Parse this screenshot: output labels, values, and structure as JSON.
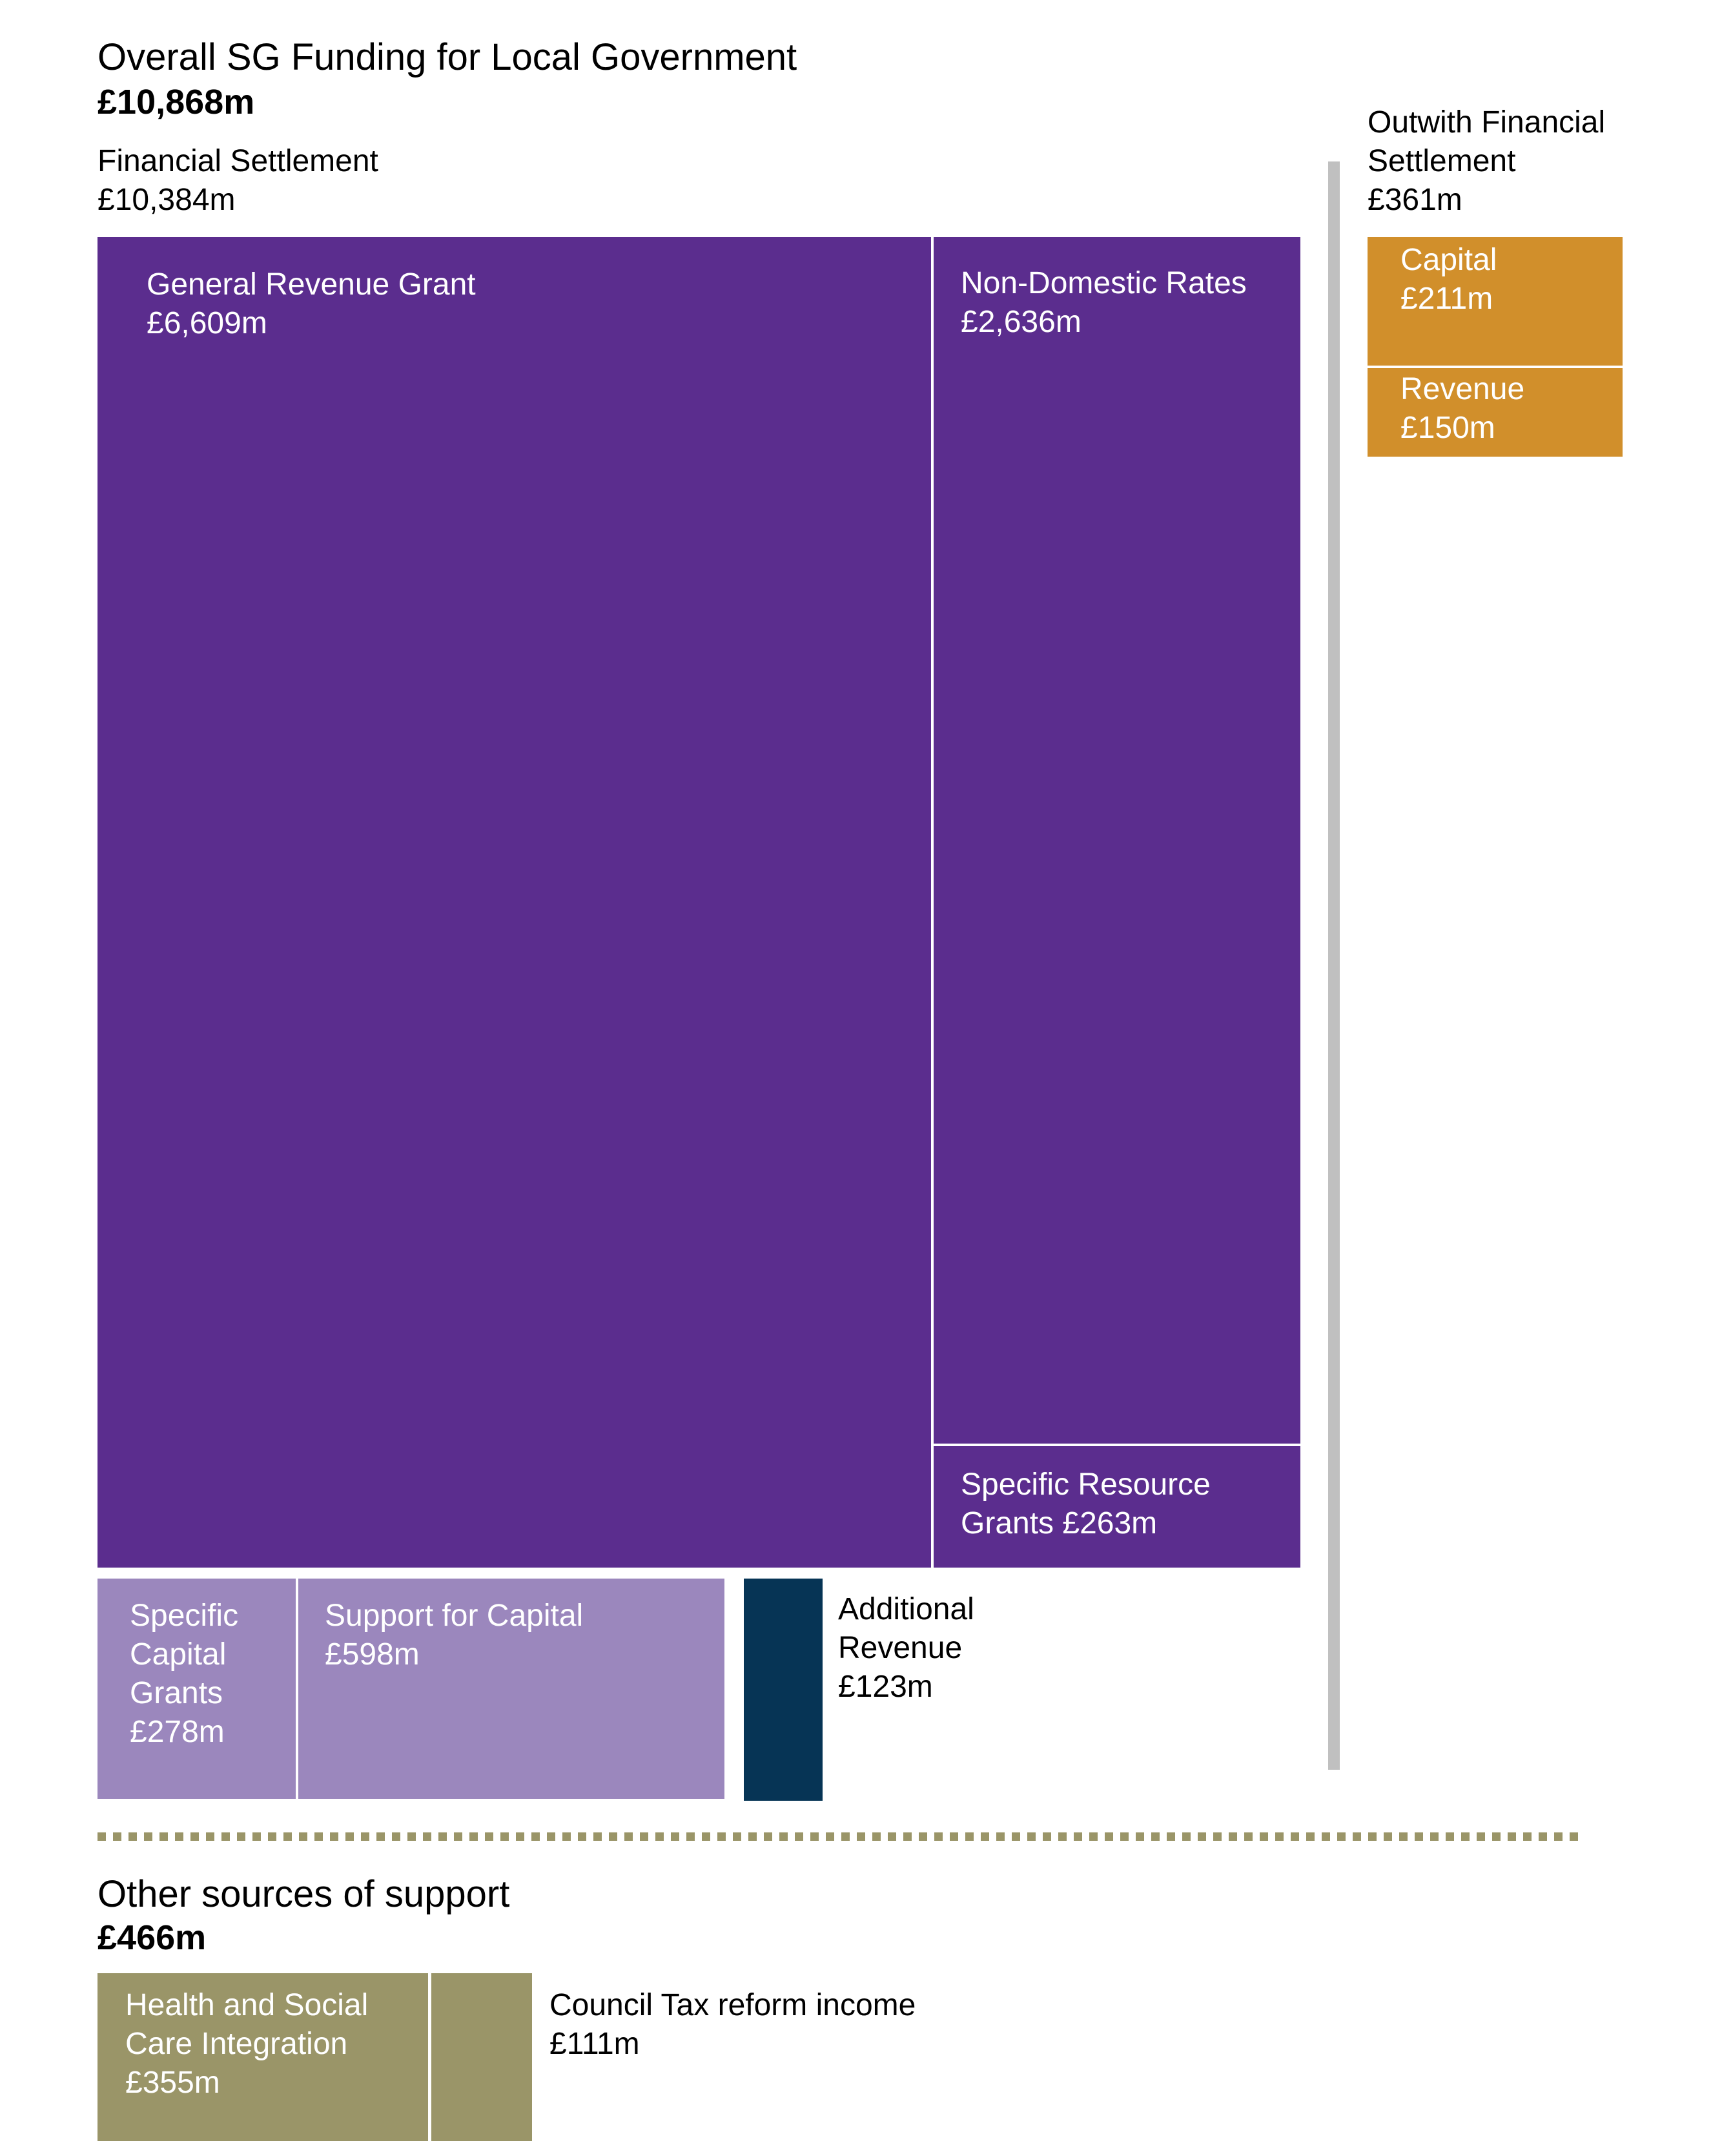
{
  "header": {
    "title": "Overall SG Funding for Local Government",
    "total": "£10,868m"
  },
  "settlement": {
    "label": "Financial Settlement",
    "total": "£10,384m"
  },
  "outwith": {
    "label_line1": "Outwith Financial",
    "label_line2": "Settlement",
    "total": "£361m"
  },
  "other": {
    "label": "Other sources of support",
    "total": "£466m"
  },
  "colors": {
    "settlement_dark": "#5b2d8e",
    "settlement_light": "#9b87bd",
    "additional_revenue": "#063455",
    "outwith": "#d18f2b",
    "other": "#9a9568",
    "divider_grey": "#c0c0c0",
    "dotted_line": "#9a9568"
  },
  "chart_data": {
    "type": "treemap",
    "title": "Overall SG Funding for Local Government",
    "units": "£m",
    "groups": [
      {
        "name": "Financial Settlement",
        "total": 10384,
        "items": [
          {
            "name": "General Revenue Grant",
            "value": 6609,
            "label_lines": [
              "General Revenue Grant",
              "£6,609m"
            ]
          },
          {
            "name": "Non-Domestic Rates",
            "value": 2636,
            "label_lines": [
              "Non-Domestic Rates",
              "£2,636m"
            ]
          },
          {
            "name": "Specific Resource Grants",
            "value": 263,
            "label_lines": [
              "Specific Resource",
              "Grants £263m"
            ]
          },
          {
            "name": "Specific Capital Grants",
            "value": 278,
            "label_lines": [
              "Specific",
              "Capital",
              "Grants",
              "£278m"
            ]
          },
          {
            "name": "Support for Capital",
            "value": 598,
            "label_lines": [
              "Support for Capital",
              "£598m"
            ]
          },
          {
            "name": "Additional Revenue",
            "value": 123,
            "label_lines": [
              "Additional",
              "Revenue",
              "£123m"
            ]
          }
        ]
      },
      {
        "name": "Outwith Financial Settlement",
        "total": 361,
        "items": [
          {
            "name": "Capital",
            "value": 211,
            "label_lines": [
              "Capital",
              "£211m"
            ]
          },
          {
            "name": "Revenue",
            "value": 150,
            "label_lines": [
              "Revenue",
              "£150m"
            ]
          }
        ]
      },
      {
        "name": "Other sources of support",
        "total": 466,
        "items": [
          {
            "name": "Health and Social Care Integration",
            "value": 355,
            "label_lines": [
              "Health and Social",
              "Care Integration",
              "£355m"
            ]
          },
          {
            "name": "Council Tax reform income",
            "value": 111,
            "label_lines": [
              "Council Tax reform income",
              "£111m"
            ]
          }
        ]
      }
    ],
    "grand_total": 10868
  }
}
